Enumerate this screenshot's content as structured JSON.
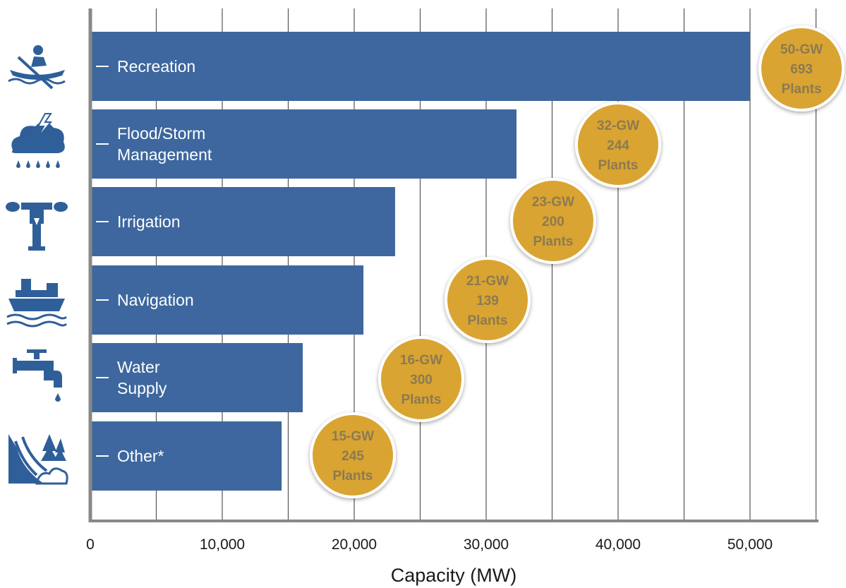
{
  "chart_data": {
    "type": "bar",
    "orientation": "horizontal",
    "categories": [
      "Recreation",
      "Flood/Storm Management",
      "Irrigation",
      "Navigation",
      "Water Supply",
      "Other*"
    ],
    "category_lines": [
      [
        "Recreation"
      ],
      [
        "Flood/Storm",
        "Management"
      ],
      [
        "Irrigation"
      ],
      [
        "Navigation"
      ],
      [
        "Water",
        "Supply"
      ],
      [
        "Other*"
      ]
    ],
    "values": [
      50000,
      32300,
      23100,
      20700,
      16100,
      14500
    ],
    "badges": [
      {
        "capacity": "50-GW",
        "count": "693",
        "unit": "Plants"
      },
      {
        "capacity": "32-GW",
        "count": "244",
        "unit": "Plants"
      },
      {
        "capacity": "23-GW",
        "count": "200",
        "unit": "Plants"
      },
      {
        "capacity": "21-GW",
        "count": "139",
        "unit": "Plants"
      },
      {
        "capacity": "16-GW",
        "count": "300",
        "unit": "Plants"
      },
      {
        "capacity": "15-GW",
        "count": "245",
        "unit": "Plants"
      }
    ],
    "icons": [
      "rowing-icon",
      "storm-cloud-icon",
      "sprinkler-icon",
      "cargo-ship-icon",
      "water-faucet-icon",
      "landscape-icon"
    ],
    "xlabel": "Capacity (MW)",
    "xlim": [
      0,
      55000
    ],
    "xticks": [
      0,
      10000,
      20000,
      30000,
      40000,
      50000
    ],
    "xtick_labels": [
      "0",
      "10,000",
      "20,000",
      "30,000",
      "40,000",
      "50,000"
    ],
    "grid": true,
    "colors": {
      "bar": "#3d679e",
      "badge": "#d9a431",
      "badge_text": "#8c7a52",
      "grid": "#555555",
      "axis": "#888888"
    }
  }
}
